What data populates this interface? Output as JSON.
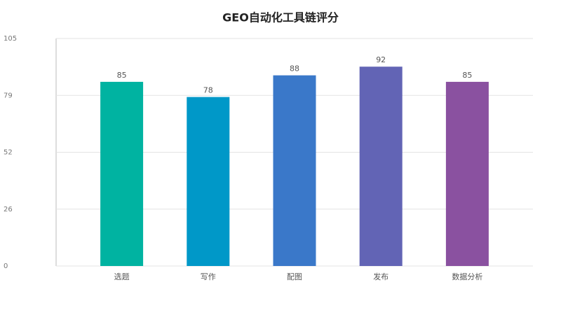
{
  "chart_data": {
    "type": "bar",
    "title": "GEO自动化工具链评分",
    "categories": [
      "选题",
      "写作",
      "配图",
      "发布",
      "数据分析"
    ],
    "values": [
      85,
      78,
      88,
      92,
      85
    ],
    "colors": [
      "#00b3a1",
      "#0098c8",
      "#3a78c9",
      "#6264b5",
      "#8a51a0"
    ],
    "ylim": [
      0,
      105
    ],
    "yticks": [
      0,
      {
        "value": 26.25,
        "label": "26"
      },
      {
        "value": 52.5,
        "label": "52"
      },
      {
        "value": 78.75,
        "label": "79"
      },
      105
    ],
    "grid": true
  }
}
